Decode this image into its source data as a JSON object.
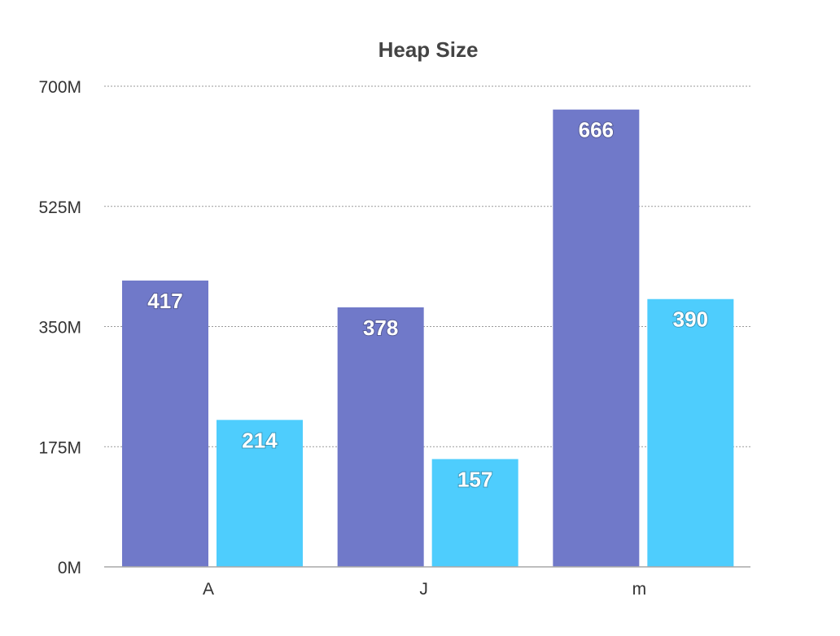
{
  "chart_data": {
    "type": "bar",
    "title": "Heap Size",
    "categories": [
      "A",
      "J",
      "m"
    ],
    "series": [
      {
        "values": [
          417,
          378,
          666
        ],
        "color": "#7079c9"
      },
      {
        "values": [
          214,
          157,
          390
        ],
        "color": "#4ecdfd"
      }
    ],
    "ylim": [
      0,
      700
    ],
    "yticks": [
      0,
      175,
      350,
      525,
      700
    ],
    "ytick_labels": [
      "0M",
      "175M",
      "350M",
      "525M",
      "700M"
    ],
    "grid": true,
    "data_labels": true
  }
}
